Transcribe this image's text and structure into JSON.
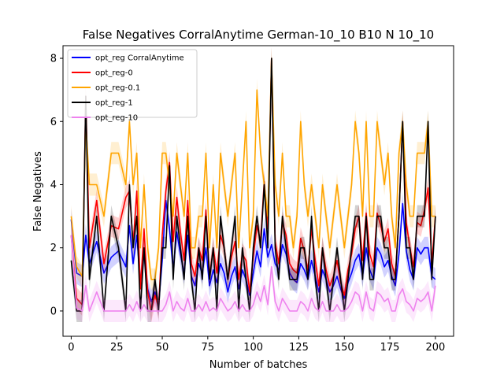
{
  "chart_data": {
    "type": "line",
    "title": "False Negatives CorralAnytime German-10_10 B10 N 10_10",
    "xlabel": "Number of batches",
    "ylabel": "False Negatives",
    "xlim": [
      -4.5,
      210
    ],
    "ylim": [
      -0.8,
      8.4
    ],
    "xticks": [
      0,
      25,
      50,
      75,
      100,
      125,
      150,
      175,
      200
    ],
    "yticks": [
      0,
      2,
      4,
      6,
      8
    ],
    "grid": false,
    "legend_position": "top-left",
    "colors": {
      "opt_reg CorralAnytime": "#0000ff",
      "opt_reg-0": "#ff0000",
      "opt_reg-0.1": "#ffa500",
      "opt_reg-1": "#000000",
      "opt_reg-10": "#ee82ee"
    },
    "series": [
      {
        "name": "opt_reg CorralAnytime",
        "color": "#0000ff",
        "x": [
          0,
          3,
          6,
          8,
          10,
          14,
          18,
          22,
          26,
          30,
          32,
          34,
          36,
          38,
          40,
          42,
          44,
          46,
          48,
          50,
          52,
          54,
          56,
          58,
          60,
          62,
          64,
          66,
          68,
          70,
          72,
          74,
          76,
          78,
          80,
          82,
          84,
          86,
          88,
          90,
          92,
          94,
          96,
          98,
          100,
          102,
          104,
          106,
          108,
          110,
          112,
          114,
          116,
          118,
          120,
          122,
          124,
          126,
          128,
          130,
          132,
          134,
          136,
          138,
          140,
          142,
          144,
          146,
          148,
          150,
          152,
          154,
          156,
          158,
          160,
          162,
          164,
          166,
          168,
          170,
          172,
          174,
          176,
          178,
          180,
          182,
          184,
          186,
          188,
          190,
          192,
          194,
          196,
          198,
          200
        ],
        "y": [
          2.9,
          1.2,
          1.1,
          2.4,
          1.5,
          2.2,
          1.2,
          1.7,
          1.9,
          1.4,
          2.7,
          1.5,
          2.4,
          0.9,
          1.8,
          0.7,
          0.3,
          0.6,
          0.2,
          1.6,
          3.5,
          2.6,
          1.3,
          2.5,
          1.8,
          1.2,
          2.4,
          1.1,
          0.8,
          1.5,
          1.2,
          2.0,
          0.8,
          1.3,
          0.9,
          1.5,
          1.2,
          0.6,
          1.1,
          1.4,
          0.7,
          1.3,
          1.0,
          0.5,
          1.2,
          1.9,
          1.4,
          2.6,
          1.7,
          2.1,
          1.5,
          1.3,
          2.1,
          1.8,
          1.2,
          1.0,
          0.9,
          1.5,
          1.3,
          1.0,
          1.6,
          1.1,
          0.6,
          1.3,
          1.0,
          0.6,
          0.8,
          1.1,
          0.7,
          0.4,
          0.9,
          1.2,
          1.6,
          1.8,
          1.1,
          2.0,
          1.3,
          1.0,
          2.0,
          1.8,
          1.4,
          1.6,
          1.1,
          0.8,
          1.8,
          3.4,
          1.9,
          1.3,
          1.0,
          2.0,
          1.8,
          2.0,
          2.0,
          1.1,
          1.0
        ]
      },
      {
        "name": "opt_reg-0",
        "color": "#ff0000",
        "x": [
          0,
          3,
          6,
          8,
          10,
          14,
          18,
          22,
          26,
          30,
          32,
          34,
          36,
          38,
          40,
          42,
          44,
          46,
          48,
          50,
          52,
          54,
          56,
          58,
          60,
          62,
          64,
          66,
          68,
          70,
          72,
          74,
          76,
          78,
          80,
          82,
          84,
          86,
          88,
          90,
          92,
          94,
          96,
          98,
          100,
          102,
          104,
          106,
          108,
          110,
          112,
          114,
          116,
          118,
          120,
          122,
          124,
          126,
          128,
          130,
          132,
          134,
          136,
          138,
          140,
          142,
          144,
          146,
          148,
          150,
          152,
          154,
          156,
          158,
          160,
          162,
          164,
          166,
          168,
          170,
          172,
          174,
          176,
          178,
          180,
          182,
          184,
          186,
          188,
          190,
          192,
          194,
          196,
          198,
          200
        ],
        "y": [
          2.4,
          0.4,
          0.2,
          6.8,
          2.0,
          3.5,
          1.5,
          2.7,
          2.6,
          3.6,
          3.8,
          2.1,
          3.8,
          0.7,
          2.6,
          0.6,
          0.0,
          0.5,
          0.1,
          2.4,
          3.8,
          4.7,
          2.2,
          3.6,
          2.5,
          1.6,
          3.5,
          1.5,
          1.1,
          2.0,
          1.6,
          3.2,
          1.1,
          2.0,
          1.2,
          2.4,
          2.0,
          1.0,
          1.7,
          2.2,
          1.0,
          1.8,
          1.6,
          0.6,
          1.7,
          2.7,
          2.2,
          4.1,
          2.6,
          8.0,
          2.2,
          1.5,
          2.8,
          2.4,
          1.5,
          1.3,
          1.2,
          2.3,
          1.9,
          1.3,
          2.6,
          1.6,
          0.8,
          2.0,
          1.3,
          0.8,
          1.1,
          1.6,
          0.9,
          0.5,
          1.3,
          1.8,
          2.6,
          3.0,
          1.6,
          3.1,
          1.8,
          1.4,
          3.1,
          2.7,
          2.2,
          2.6,
          1.5,
          1.1,
          3.0,
          6.0,
          2.8,
          2.0,
          1.4,
          2.8,
          2.7,
          3.2,
          3.9,
          1.5,
          3.0
        ]
      },
      {
        "name": "opt_reg-0.1",
        "color": "#ffa500",
        "x": [
          0,
          3,
          6,
          8,
          10,
          14,
          18,
          22,
          26,
          30,
          32,
          34,
          36,
          38,
          40,
          42,
          44,
          46,
          48,
          50,
          52,
          54,
          56,
          58,
          60,
          62,
          64,
          66,
          68,
          70,
          72,
          74,
          76,
          78,
          80,
          82,
          84,
          86,
          88,
          90,
          92,
          94,
          96,
          98,
          100,
          102,
          104,
          106,
          108,
          110,
          112,
          114,
          116,
          118,
          120,
          122,
          124,
          126,
          128,
          130,
          132,
          134,
          136,
          138,
          140,
          142,
          144,
          146,
          148,
          150,
          152,
          154,
          156,
          158,
          160,
          162,
          164,
          166,
          168,
          170,
          172,
          174,
          176,
          178,
          180,
          182,
          184,
          186,
          188,
          190,
          192,
          194,
          196,
          198,
          200
        ],
        "y": [
          3.0,
          1.4,
          1.1,
          6.0,
          4.0,
          4.0,
          3.0,
          5.0,
          5.0,
          4.0,
          6.0,
          4.0,
          5.0,
          2.0,
          4.0,
          2.0,
          1.0,
          1.0,
          2.0,
          5.0,
          5.0,
          4.0,
          3.0,
          5.0,
          4.0,
          3.0,
          5.0,
          2.0,
          2.0,
          3.0,
          3.0,
          5.0,
          2.0,
          4.0,
          2.0,
          5.0,
          4.0,
          3.0,
          4.0,
          5.0,
          2.0,
          4.0,
          6.0,
          2.0,
          3.0,
          7.0,
          5.0,
          4.0,
          3.0,
          8.0,
          4.0,
          3.0,
          5.0,
          3.0,
          3.0,
          2.0,
          3.0,
          6.0,
          4.0,
          3.0,
          4.0,
          3.0,
          2.0,
          4.0,
          3.0,
          2.0,
          3.0,
          4.0,
          3.0,
          2.0,
          3.0,
          4.0,
          6.0,
          5.0,
          3.0,
          6.0,
          3.0,
          3.0,
          6.0,
          5.0,
          4.0,
          5.0,
          3.0,
          2.0,
          5.0,
          6.0,
          4.0,
          3.0,
          3.0,
          5.0,
          5.0,
          5.0,
          6.0,
          3.0,
          3.0
        ]
      },
      {
        "name": "opt_reg-1",
        "color": "#000000",
        "x": [
          0,
          3,
          6,
          8,
          10,
          14,
          18,
          22,
          26,
          30,
          32,
          34,
          36,
          38,
          40,
          42,
          44,
          46,
          48,
          50,
          52,
          54,
          56,
          58,
          60,
          62,
          64,
          66,
          68,
          70,
          72,
          74,
          76,
          78,
          80,
          82,
          84,
          86,
          88,
          90,
          92,
          94,
          96,
          98,
          100,
          102,
          104,
          106,
          108,
          110,
          112,
          114,
          116,
          118,
          120,
          122,
          124,
          126,
          128,
          130,
          132,
          134,
          136,
          138,
          140,
          142,
          144,
          146,
          148,
          150,
          152,
          154,
          156,
          158,
          160,
          162,
          164,
          166,
          168,
          170,
          172,
          174,
          176,
          178,
          180,
          182,
          184,
          186,
          188,
          190,
          192,
          194,
          196,
          198,
          200
        ],
        "y": [
          1.6,
          0.0,
          0.0,
          6.8,
          1.0,
          3.0,
          0.0,
          3.0,
          2.0,
          0.0,
          4.0,
          2.0,
          3.0,
          0.0,
          2.0,
          0.0,
          0.0,
          1.0,
          0.0,
          2.0,
          2.0,
          4.6,
          1.0,
          3.0,
          2.0,
          1.0,
          3.0,
          1.0,
          0.0,
          2.0,
          1.0,
          3.0,
          1.0,
          2.0,
          0.0,
          3.0,
          2.0,
          1.0,
          2.0,
          3.0,
          0.0,
          2.0,
          1.0,
          0.0,
          2.0,
          3.0,
          2.0,
          4.0,
          2.0,
          8.0,
          2.0,
          1.0,
          3.0,
          2.0,
          1.0,
          1.0,
          1.0,
          2.0,
          2.0,
          1.0,
          3.0,
          1.0,
          0.0,
          2.0,
          1.0,
          0.0,
          1.0,
          2.0,
          1.0,
          0.0,
          1.0,
          2.0,
          3.0,
          3.0,
          1.0,
          3.0,
          1.0,
          1.0,
          3.0,
          3.0,
          2.0,
          2.0,
          1.0,
          1.0,
          3.0,
          6.0,
          2.0,
          2.0,
          1.0,
          3.0,
          3.0,
          3.0,
          6.0,
          1.0,
          3.0
        ]
      },
      {
        "name": "opt_reg-10",
        "color": "#ee82ee",
        "x": [
          0,
          3,
          6,
          8,
          10,
          14,
          18,
          22,
          26,
          30,
          32,
          34,
          36,
          38,
          40,
          42,
          44,
          46,
          48,
          50,
          52,
          54,
          56,
          58,
          60,
          62,
          64,
          66,
          68,
          70,
          72,
          74,
          76,
          78,
          80,
          82,
          84,
          86,
          88,
          90,
          92,
          94,
          96,
          98,
          100,
          102,
          104,
          106,
          108,
          110,
          112,
          114,
          116,
          118,
          120,
          122,
          124,
          126,
          128,
          130,
          132,
          134,
          136,
          138,
          140,
          142,
          144,
          146,
          148,
          150,
          152,
          154,
          156,
          158,
          160,
          162,
          164,
          166,
          168,
          170,
          172,
          174,
          176,
          178,
          180,
          182,
          184,
          186,
          188,
          190,
          192,
          194,
          196,
          198,
          200
        ],
        "y": [
          2.4,
          0.1,
          0.0,
          0.8,
          0.0,
          0.6,
          0.0,
          0.0,
          0.0,
          0.0,
          0.2,
          0.0,
          0.3,
          0.0,
          0.2,
          0.0,
          0.0,
          0.0,
          0.0,
          0.0,
          0.2,
          0.6,
          0.0,
          0.3,
          0.1,
          0.0,
          0.4,
          0.0,
          0.0,
          0.2,
          0.0,
          0.3,
          0.0,
          0.1,
          0.0,
          0.4,
          0.2,
          0.0,
          0.1,
          0.3,
          0.0,
          0.2,
          0.0,
          0.0,
          0.2,
          0.6,
          0.3,
          0.8,
          0.2,
          1.4,
          0.3,
          0.0,
          0.4,
          0.2,
          0.0,
          0.0,
          0.0,
          0.3,
          0.2,
          0.0,
          0.4,
          0.1,
          0.0,
          0.3,
          0.0,
          0.0,
          0.0,
          0.2,
          0.0,
          0.0,
          0.1,
          0.3,
          0.6,
          0.5,
          0.0,
          0.6,
          0.1,
          0.0,
          0.6,
          0.5,
          0.3,
          0.4,
          0.0,
          0.0,
          0.5,
          0.7,
          0.3,
          0.2,
          0.0,
          0.4,
          0.3,
          0.4,
          0.6,
          0.0,
          0.8
        ]
      }
    ]
  }
}
